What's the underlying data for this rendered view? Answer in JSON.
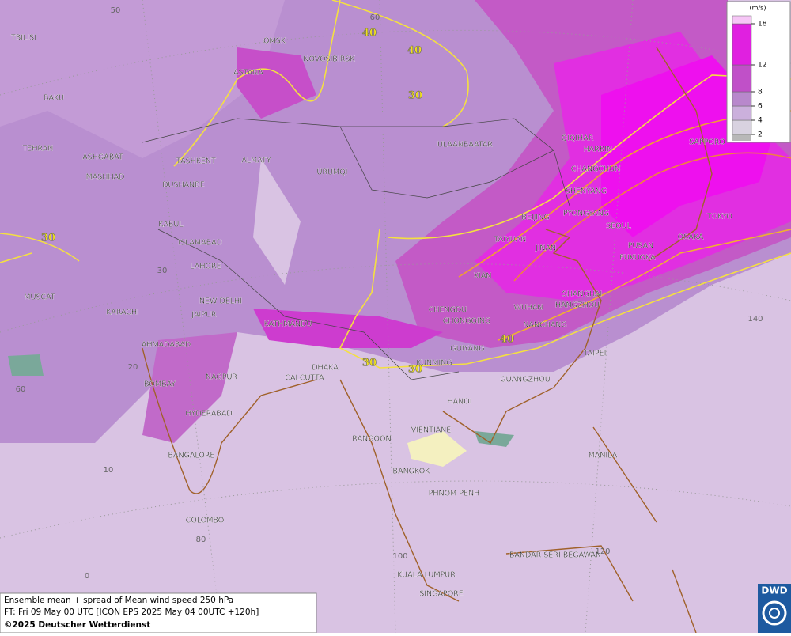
{
  "map": {
    "cities": [
      "OMSK",
      "NOVOSIBIRSK",
      "ASTANA",
      "TBILISI",
      "BAKU",
      "TEHRAN",
      "ASHGABAT",
      "MASHHAD",
      "TASHKENT",
      "DUSHANBE",
      "ALMATY",
      "URUMQI",
      "ULAANBAATAR",
      "QIQIHAR",
      "HARBIN",
      "CHANGCHUN",
      "SHENYANG",
      "PYONGYANG",
      "SEOUL",
      "SAPPORO",
      "TOKYO",
      "OSAKA",
      "PUSAN",
      "FUKUOKA",
      "BEIJING",
      "TAIYUAN",
      "JINAN",
      "XIAN",
      "KABUL",
      "ISLAMABAD",
      "LAHORE",
      "NEW DELHI",
      "JAIPUR",
      "KARACHI",
      "MUSCAT",
      "AHMADABAD",
      "KATHMANDU",
      "CHENGDU",
      "CHONGQING",
      "WUHAN",
      "SHANGHAI",
      "HANGZHOU",
      "NANCHANG",
      "GUIYANG",
      "KUNMING",
      "DHAKA",
      "CALCUTTA",
      "NAGPUR",
      "BOMBAY",
      "HYDERABAD",
      "TAIPEI",
      "GUANGZHOU",
      "HANOI",
      "VIENTIANE",
      "RANGOON",
      "BANGKOK",
      "PHNOM PENH",
      "MANILA",
      "BANGALORE",
      "COLOMBO",
      "BANDAR SERI BEGAWAN",
      "KUALA LUMPUR",
      "SINGAPORE"
    ],
    "contour_labels": [
      40,
      40,
      30,
      30,
      40,
      30,
      30
    ],
    "grid_labels": [
      50,
      60,
      30,
      20,
      10,
      0,
      60,
      80,
      100,
      120,
      140
    ],
    "legend": {
      "unit": "(m/s)",
      "ticks": [
        2,
        4,
        6,
        8,
        12,
        18
      ],
      "colors": [
        "#d8d2e0",
        "#cbb0dc",
        "#b888cc",
        "#c050c8",
        "#e020e0",
        "#f6c6f6"
      ]
    }
  },
  "caption": [
    "Ensemble mean + spread of Mean wind speed 250 hPa",
    "FT: Fri 09 May 00 UTC [ICON EPS 2025 May 04 00UTC +120h]",
    "©2025 Deutscher Wetterdienst"
  ],
  "logo": "DWD"
}
